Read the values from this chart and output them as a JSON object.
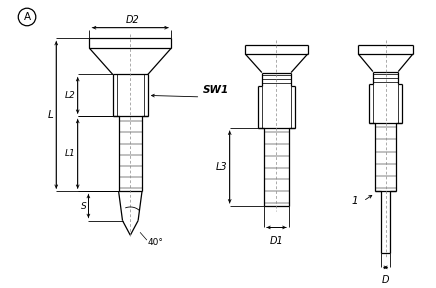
{
  "background_color": "#ffffff",
  "line_color": "#000000",
  "annotation_A": "A",
  "label_D2": "D2",
  "label_SW1": "SW1",
  "label_L": "L",
  "label_L1": "L1",
  "label_L2": "L2",
  "label_L3": "L3",
  "label_S": "S",
  "label_angle": "40°",
  "label_D1": "D1",
  "label_D": "D",
  "label_1": "1",
  "fig_width": 4.36,
  "fig_height": 2.88,
  "dpi": 100
}
